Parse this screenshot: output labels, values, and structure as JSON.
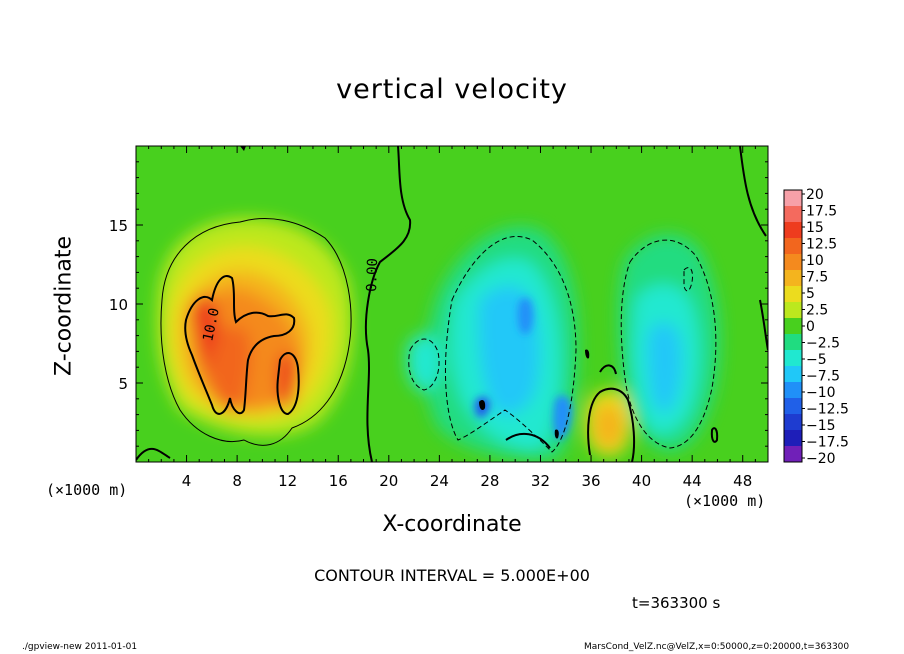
{
  "chart_data": {
    "type": "heatmap",
    "title": "vertical velocity",
    "xlabel": "X-coordinate",
    "ylabel": "Z-coordinate",
    "x_unit_label": "(×1000 m)",
    "x_ticks": [
      4,
      8,
      12,
      16,
      20,
      24,
      28,
      32,
      36,
      40,
      44,
      48
    ],
    "y_ticks": [
      5,
      10,
      15
    ],
    "xlim": [
      0,
      50
    ],
    "ylim": [
      0,
      20
    ],
    "colorbar": {
      "labels": [
        "20",
        "17.5",
        "15",
        "12.5",
        "10",
        "7.5",
        "5",
        "2.5",
        "0",
        "−2.5",
        "−5",
        "−7.5",
        "−10",
        "−12.5",
        "−15",
        "−17.5",
        "−20"
      ],
      "values": [
        20,
        17.5,
        15,
        12.5,
        10,
        7.5,
        5,
        2.5,
        0,
        -2.5,
        -5,
        -7.5,
        -10,
        -12.5,
        -15,
        -17.5,
        -20
      ],
      "colors": [
        "#f7a0a8",
        "#f46a5e",
        "#ee3c1e",
        "#f2661e",
        "#f48a1e",
        "#f4b41e",
        "#ecdc1e",
        "#bce81e",
        "#48d01e",
        "#20dc80",
        "#20e8d0",
        "#20c8f8",
        "#2090f8",
        "#2060e8",
        "#1e3cd0",
        "#1e1eb8",
        "#7020b8"
      ]
    },
    "contour_labels": [
      "10.0",
      "0.00"
    ],
    "contour_interval": "CONTOUR INTERVAL = 5.000E+00",
    "time": "t=363300 s"
  },
  "footer": {
    "left": "./gpview-new  2011-01-01",
    "right": "MarsCond_VelZ.nc@VelZ,x=0:50000,z=0:20000,t=363300"
  }
}
